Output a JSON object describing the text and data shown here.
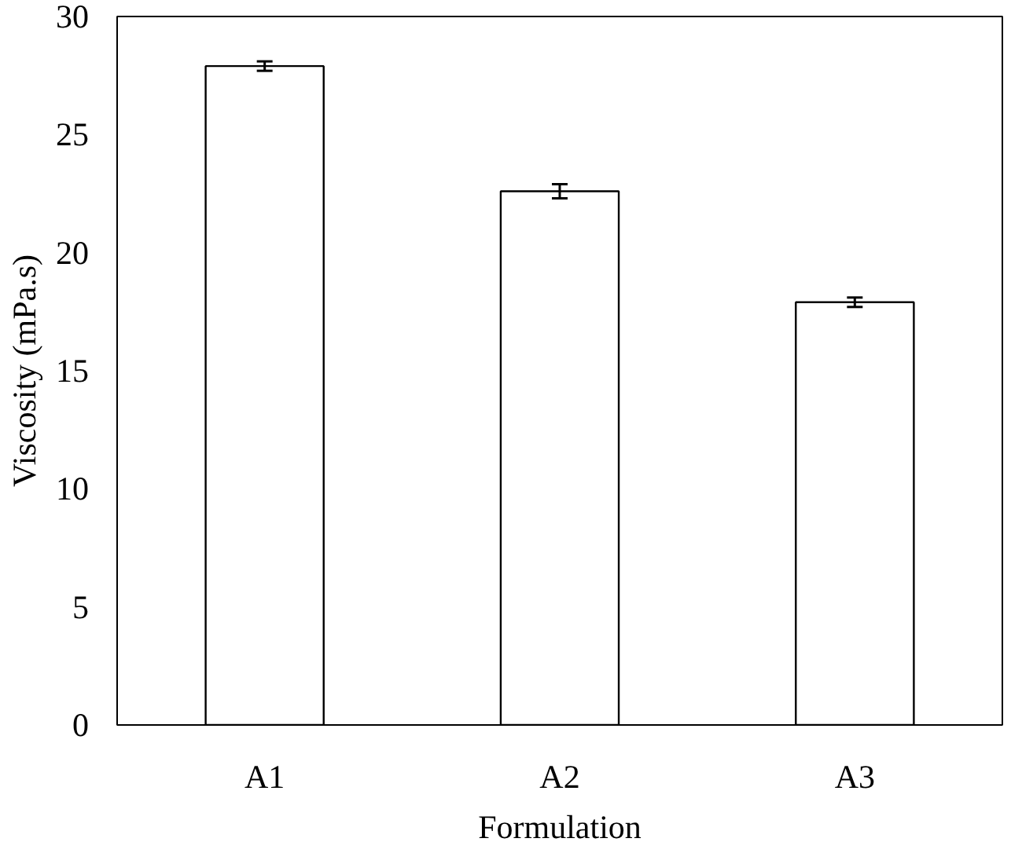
{
  "chart_data": {
    "type": "bar",
    "xlabel": "Formulation",
    "ylabel": "Viscosity (mPa.s)",
    "categories": [
      "A1",
      "A2",
      "A3"
    ],
    "values": [
      27.9,
      22.6,
      17.9
    ],
    "errors": [
      0.2,
      0.3,
      0.2
    ],
    "color": "#ffffff",
    "ylim": [
      0,
      30
    ],
    "yticks": [
      0,
      5,
      10,
      15,
      20,
      25,
      30
    ],
    "grid": false
  }
}
